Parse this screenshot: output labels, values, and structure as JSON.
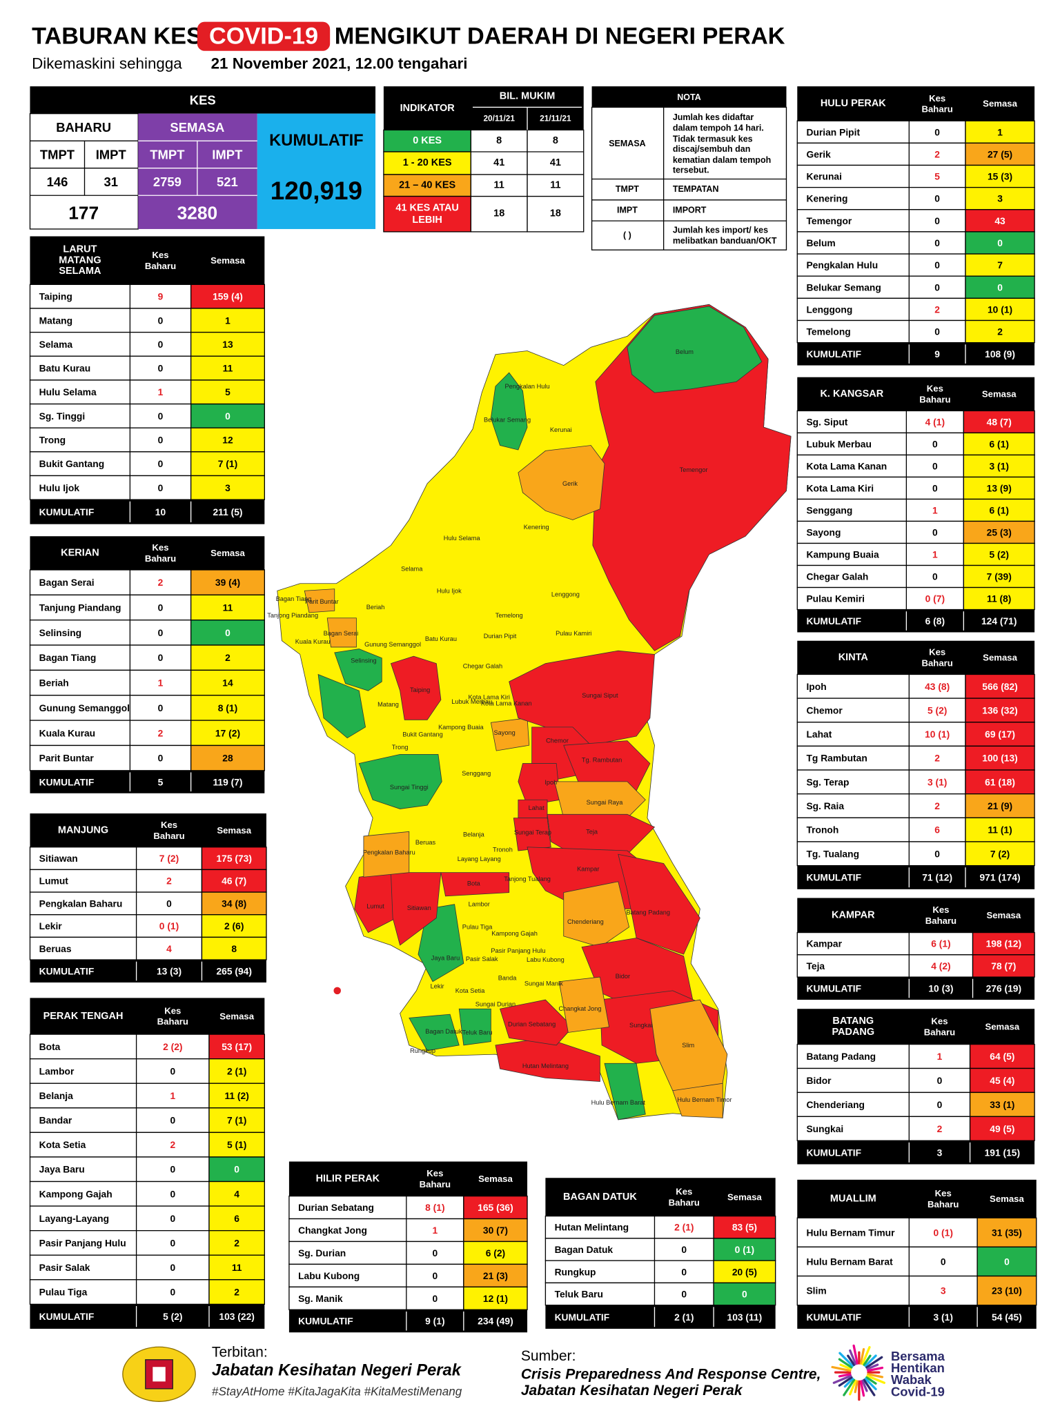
{
  "header": {
    "title_pre": "TABURAN KES",
    "title_highlight": "COVID-19",
    "title_post": "MENGIKUT DAERAH DI NEGERI PERAK",
    "subtitle_pre": "Dikemaskini sehingga",
    "subtitle_date": "21 November 2021, 12.00 tengahari"
  },
  "summary": {
    "title": "KES",
    "baharu": "BAHARU",
    "semasa": "SEMASA",
    "kumulatif": "KUMULATIF",
    "sub": [
      "TMPT",
      "IMPT",
      "TMPT",
      "IMPT"
    ],
    "values": [
      "146",
      "31",
      "2759",
      "521"
    ],
    "totals": [
      "177",
      "3280"
    ],
    "kumulatif_value": "120,919"
  },
  "indicator": {
    "title": "INDIKATOR",
    "group": "BIL. MUKIM",
    "dates": [
      "20/11/21",
      "21/11/21"
    ],
    "rows": [
      {
        "label": [
          "0 KES"
        ],
        "values": [
          "8",
          "8"
        ]
      },
      {
        "label": [
          "1 - 20 KES"
        ],
        "values": [
          "41",
          "41"
        ]
      },
      {
        "label": [
          "21 – 40 KES"
        ],
        "values": [
          "11",
          "11"
        ]
      },
      {
        "label": [
          "41 KES ATAU",
          "LEBIH"
        ],
        "values": [
          "18",
          "18"
        ]
      }
    ]
  },
  "nota": {
    "title": "NOTA",
    "rows": [
      {
        "term": "SEMASA",
        "text": [
          "Jumlah kes didaftar",
          "dalam tempoh 14 hari.",
          "Tidak termasuk kes",
          "discaj/sembuh dan",
          "kematian dalam tempoh",
          "tersebut."
        ]
      },
      {
        "term": "TMPT",
        "text": [
          "TEMPATAN"
        ]
      },
      {
        "term": "IMPT",
        "text": [
          "IMPORT"
        ]
      },
      {
        "term": "( )",
        "text": [
          "Jumlah kes import/ kes",
          "melibatkan banduan/OKT"
        ]
      }
    ]
  },
  "districts": [
    {
      "name": [
        "LARUT",
        "MATANG",
        "SELAMA"
      ],
      "col_baharu": [
        "Kes",
        "Baharu"
      ],
      "col_semasa": "Semasa",
      "rows": [
        [
          "Taiping",
          "9",
          "159 (4)",
          "#ee1c24"
        ],
        [
          "Matang",
          "0",
          "1",
          "#fff200"
        ],
        [
          "Selama",
          "0",
          "13",
          "#fff200"
        ],
        [
          "Batu Kurau",
          "0",
          "11",
          "#fff200"
        ],
        [
          "Hulu Selama",
          "1",
          "5",
          "#fff200"
        ],
        [
          "Sg. Tinggi",
          "0",
          "0",
          "#22b14c"
        ],
        [
          "Trong",
          "0",
          "12",
          "#fff200"
        ],
        [
          "Bukit Gantang",
          "0",
          "7 (1)",
          "#fff200"
        ],
        [
          "Hulu Ijok",
          "0",
          "3",
          "#fff200"
        ]
      ],
      "total": [
        "KUMULATIF",
        "10",
        "211 (5)"
      ]
    },
    {
      "name": [
        "KERIAN"
      ],
      "col_baharu": [
        "Kes",
        "Baharu"
      ],
      "col_semasa": "Semasa",
      "rows": [
        [
          "Bagan Serai",
          "2",
          "39 (4)",
          "#f9a61a"
        ],
        [
          "Tanjung Piandang",
          "0",
          "11",
          "#fff200"
        ],
        [
          "Selinsing",
          "0",
          "0",
          "#22b14c"
        ],
        [
          "Bagan Tiang",
          "0",
          "2",
          "#fff200"
        ],
        [
          "Beriah",
          "1",
          "14",
          "#fff200"
        ],
        [
          "Gunung Semanggol",
          "0",
          "8 (1)",
          "#fff200"
        ],
        [
          "Kuala Kurau",
          "2",
          "17 (2)",
          "#fff200"
        ],
        [
          "Parit Buntar",
          "0",
          "28",
          "#f9a61a"
        ]
      ],
      "total": [
        "KUMULATIF",
        "5",
        "119 (7)"
      ]
    },
    {
      "name": [
        "MANJUNG"
      ],
      "col_baharu": [
        "Kes",
        "Baharu"
      ],
      "col_semasa": "Semasa",
      "rows": [
        [
          "Sitiawan",
          "7 (2)",
          "175 (73)",
          "#ee1c24"
        ],
        [
          "Lumut",
          "2",
          "46 (7)",
          "#ee1c24"
        ],
        [
          "Pengkalan Baharu",
          "0",
          "34 (8)",
          "#f9a61a"
        ],
        [
          "Lekir",
          "0 (1)",
          "2 (6)",
          "#fff200"
        ],
        [
          "Beruas",
          "4",
          "8",
          "#fff200"
        ]
      ],
      "total": [
        "KUMULATIF",
        "13 (3)",
        "265 (94)"
      ]
    },
    {
      "name": [
        "PERAK TENGAH"
      ],
      "col_baharu": [
        "Kes",
        "Baharu"
      ],
      "col_semasa": "Semasa",
      "rows": [
        [
          "Bota",
          "2 (2)",
          "53 (17)",
          "#ee1c24"
        ],
        [
          "Lambor",
          "0",
          "2 (1)",
          "#fff200"
        ],
        [
          "Belanja",
          "1",
          "11 (2)",
          "#fff200"
        ],
        [
          "Bandar",
          "0",
          "7 (1)",
          "#fff200"
        ],
        [
          "Kota Setia",
          "2",
          "5 (1)",
          "#fff200"
        ],
        [
          "Jaya Baru",
          "0",
          "0",
          "#22b14c"
        ],
        [
          "Kampong Gajah",
          "0",
          "4",
          "#fff200"
        ],
        [
          "Layang-Layang",
          "0",
          "6",
          "#fff200"
        ],
        [
          "Pasir Panjang Hulu",
          "0",
          "2",
          "#fff200"
        ],
        [
          "Pasir Salak",
          "0",
          "11",
          "#fff200"
        ],
        [
          "Pulau Tiga",
          "0",
          "2",
          "#fff200"
        ]
      ],
      "total": [
        "KUMULATIF",
        "5 (2)",
        "103 (22)"
      ]
    },
    {
      "name": [
        "HILIR PERAK"
      ],
      "col_baharu": [
        "Kes",
        "Baharu"
      ],
      "col_semasa": "Semasa",
      "rows": [
        [
          "Durian Sebatang",
          "8 (1)",
          "165 (36)",
          "#ee1c24"
        ],
        [
          "Changkat Jong",
          "1",
          "30 (7)",
          "#f9a61a"
        ],
        [
          "Sg. Durian",
          "0",
          "6 (2)",
          "#fff200"
        ],
        [
          "Labu Kubong",
          "0",
          "21 (3)",
          "#f9a61a"
        ],
        [
          "Sg. Manik",
          "0",
          "12 (1)",
          "#fff200"
        ]
      ],
      "total": [
        "KUMULATIF",
        "9 (1)",
        "234 (49)"
      ]
    },
    {
      "name": [
        "BAGAN DATUK"
      ],
      "col_baharu": [
        "Kes",
        "Baharu"
      ],
      "col_semasa": "Semasa",
      "rows": [
        [
          "Hutan Melintang",
          "2 (1)",
          "83 (5)",
          "#ee1c24"
        ],
        [
          "Bagan Datuk",
          "0",
          "0 (1)",
          "#22b14c"
        ],
        [
          "Rungkup",
          "0",
          "20 (5)",
          "#fff200"
        ],
        [
          "Teluk Baru",
          "0",
          "0",
          "#22b14c"
        ]
      ],
      "total": [
        "KUMULATIF",
        "2 (1)",
        "103 (11)"
      ]
    },
    {
      "name": [
        "HULU PERAK"
      ],
      "col_baharu": [
        "Kes",
        "Baharu"
      ],
      "col_semasa": "Semasa",
      "rows": [
        [
          "Durian Pipit",
          "0",
          "1",
          "#fff200"
        ],
        [
          "Gerik",
          "2",
          "27 (5)",
          "#f9a61a"
        ],
        [
          "Kerunai",
          "5",
          "15 (3)",
          "#fff200"
        ],
        [
          "Kenering",
          "0",
          "3",
          "#fff200"
        ],
        [
          "Temengor",
          "0",
          "43",
          "#ee1c24"
        ],
        [
          "Belum",
          "0",
          "0",
          "#22b14c"
        ],
        [
          "Pengkalan Hulu",
          "0",
          "7",
          "#fff200"
        ],
        [
          "Belukar Semang",
          "0",
          "0",
          "#22b14c"
        ],
        [
          "Lenggong",
          "2",
          "10 (1)",
          "#fff200"
        ],
        [
          "Temelong",
          "0",
          "2",
          "#fff200"
        ]
      ],
      "total": [
        "KUMULATIF",
        "9",
        "108 (9)"
      ]
    },
    {
      "name": [
        "K. KANGSAR"
      ],
      "col_baharu": [
        "Kes",
        "Baharu"
      ],
      "col_semasa": "Semasa",
      "rows": [
        [
          "Sg. Siput",
          "4 (1)",
          "48 (7)",
          "#ee1c24"
        ],
        [
          "Lubuk Merbau",
          "0",
          "6 (1)",
          "#fff200"
        ],
        [
          "Kota Lama Kanan",
          "0",
          "3 (1)",
          "#fff200"
        ],
        [
          "Kota Lama Kiri",
          "0",
          "13 (9)",
          "#fff200"
        ],
        [
          "Senggang",
          "1",
          "6 (1)",
          "#fff200"
        ],
        [
          "Sayong",
          "0",
          "25 (3)",
          "#f9a61a"
        ],
        [
          "Kampung Buaia",
          "1",
          "5 (2)",
          "#fff200"
        ],
        [
          "Chegar Galah",
          "0",
          "7 (39)",
          "#fff200"
        ],
        [
          "Pulau Kemiri",
          "0 (7)",
          "11 (8)",
          "#fff200"
        ]
      ],
      "total": [
        "KUMULATIF",
        "6 (8)",
        "124 (71)"
      ]
    },
    {
      "name": [
        "KINTA"
      ],
      "col_baharu": [
        "Kes",
        "Baharu"
      ],
      "col_semasa": "Semasa",
      "rows": [
        [
          "Ipoh",
          "43 (8)",
          "566 (82)",
          "#ee1c24"
        ],
        [
          "Chemor",
          "5 (2)",
          "136 (32)",
          "#ee1c24"
        ],
        [
          "Lahat",
          "10 (1)",
          "69 (17)",
          "#ee1c24"
        ],
        [
          "Tg Rambutan",
          "2",
          "100 (13)",
          "#ee1c24"
        ],
        [
          "Sg. Terap",
          "3 (1)",
          "61 (18)",
          "#ee1c24"
        ],
        [
          "Sg. Raia",
          "2",
          "21 (9)",
          "#f9a61a"
        ],
        [
          "Tronoh",
          "6",
          "11 (1)",
          "#fff200"
        ],
        [
          "Tg. Tualang",
          "0",
          "7 (2)",
          "#fff200"
        ]
      ],
      "total": [
        "KUMULATIF",
        "71 (12)",
        "971 (174)"
      ]
    },
    {
      "name": [
        "KAMPAR"
      ],
      "col_baharu": [
        "Kes",
        "Baharu"
      ],
      "col_semasa": "Semasa",
      "rows": [
        [
          "Kampar",
          "6 (1)",
          "198 (12)",
          "#ee1c24"
        ],
        [
          "Teja",
          "4 (2)",
          "78 (7)",
          "#ee1c24"
        ]
      ],
      "total": [
        "KUMULATIF",
        "10 (3)",
        "276 (19)"
      ]
    },
    {
      "name": [
        "BATANG",
        "PADANG"
      ],
      "col_baharu": [
        "Kes",
        "Baharu"
      ],
      "col_semasa": "Semasa",
      "rows": [
        [
          "Batang Padang",
          "1",
          "64 (5)",
          "#ee1c24"
        ],
        [
          "Bidor",
          "0",
          "45 (4)",
          "#ee1c24"
        ],
        [
          "Chenderiang",
          "0",
          "33 (1)",
          "#f9a61a"
        ],
        [
          "Sungkai",
          "2",
          "49 (5)",
          "#ee1c24"
        ]
      ],
      "total": [
        "KUMULATIF",
        "3",
        "191 (15)"
      ]
    },
    {
      "name": [
        "MUALLIM"
      ],
      "col_baharu": [
        "Kes",
        "Baharu"
      ],
      "col_semasa": "Semasa",
      "rows": [
        [
          "Hulu Bernam Timur",
          "0 (1)",
          "31 (35)",
          "#f9a61a"
        ],
        [
          "Hulu Bernam Barat",
          "0",
          "0",
          "#22b14c"
        ],
        [
          "Slim",
          "3",
          "23 (10)",
          "#f9a61a"
        ]
      ],
      "total": [
        "KUMULATIF",
        "3 (1)",
        "54 (45)"
      ]
    }
  ],
  "map": {
    "labels": [
      "Belum",
      "Pengkalan Hulu",
      "Belukar Semang",
      "Kerunai",
      "Temengor",
      "Gerik",
      "Kenering",
      "Hulu Selama",
      "Selama",
      "Hulu Ijok",
      "Lenggong",
      "Bagan Tiang",
      "Parit Buntar",
      "Tanjong Piandang",
      "Beriah",
      "Temelong",
      "Kuala Kurau",
      "Bagan Serai",
      "Gunung Semanggol",
      "Batu Kurau",
      "Durian Pipit",
      "Pulau Kamiri",
      "Selinsing",
      "Chegar Galah",
      "Taiping",
      "Lubuk Merbau",
      "Kota Lama Kiri",
      "Kota Lama Kanan",
      "Sungai Siput",
      "Matang",
      "Kampong Buaia",
      "Sayong",
      "Bukit Gantang",
      "Chemor",
      "Trong",
      "Tg. Rambutan",
      "Senggang",
      "Sungai Tinggi",
      "Ipoh",
      "Sungai Raya",
      "Lahat",
      "Sungai Terap",
      "Teja",
      "Belanja",
      "Beruas",
      "Pengkalan Baharu",
      "Layang Layang",
      "Tronoh",
      "Kampar",
      "Tanjong Tualang",
      "Bota",
      "Batang Padang",
      "Lumut",
      "Sitiawan",
      "Lambor",
      "Chenderiang",
      "Pulau Tiga",
      "Kampong Gajah",
      "Pasir Panjang Hulu",
      "Labu Kubong",
      "Jaya Baru",
      "Pasir Salak",
      "Bidor",
      "Banda",
      "Sungai Manik",
      "Lekir",
      "Kota Setia",
      "Sungai Durian",
      "Changkat Jong",
      "Sungkai",
      "Durian Sebatang",
      "Bagan Datuk",
      "Teluk Baru",
      "Rungkup",
      "Slim",
      "Hutan Melintang",
      "Hulu Bernam Timor",
      "Hulu Bernam Barat"
    ]
  },
  "footer": {
    "publisher_label": "Terbitan:",
    "publisher": "Jabatan Kesihatan Negeri Perak",
    "hashtags": "#StayAtHome #KitaJagaKita #KitaMestiMenang",
    "source_label": "Sumber:",
    "source": [
      "Crisis Preparedness And Response Centre,",
      "Jabatan Kesihatan Negeri Perak"
    ],
    "logo": [
      "Bersama",
      "Hentikan",
      "Wabak",
      "Covid-19"
    ]
  }
}
